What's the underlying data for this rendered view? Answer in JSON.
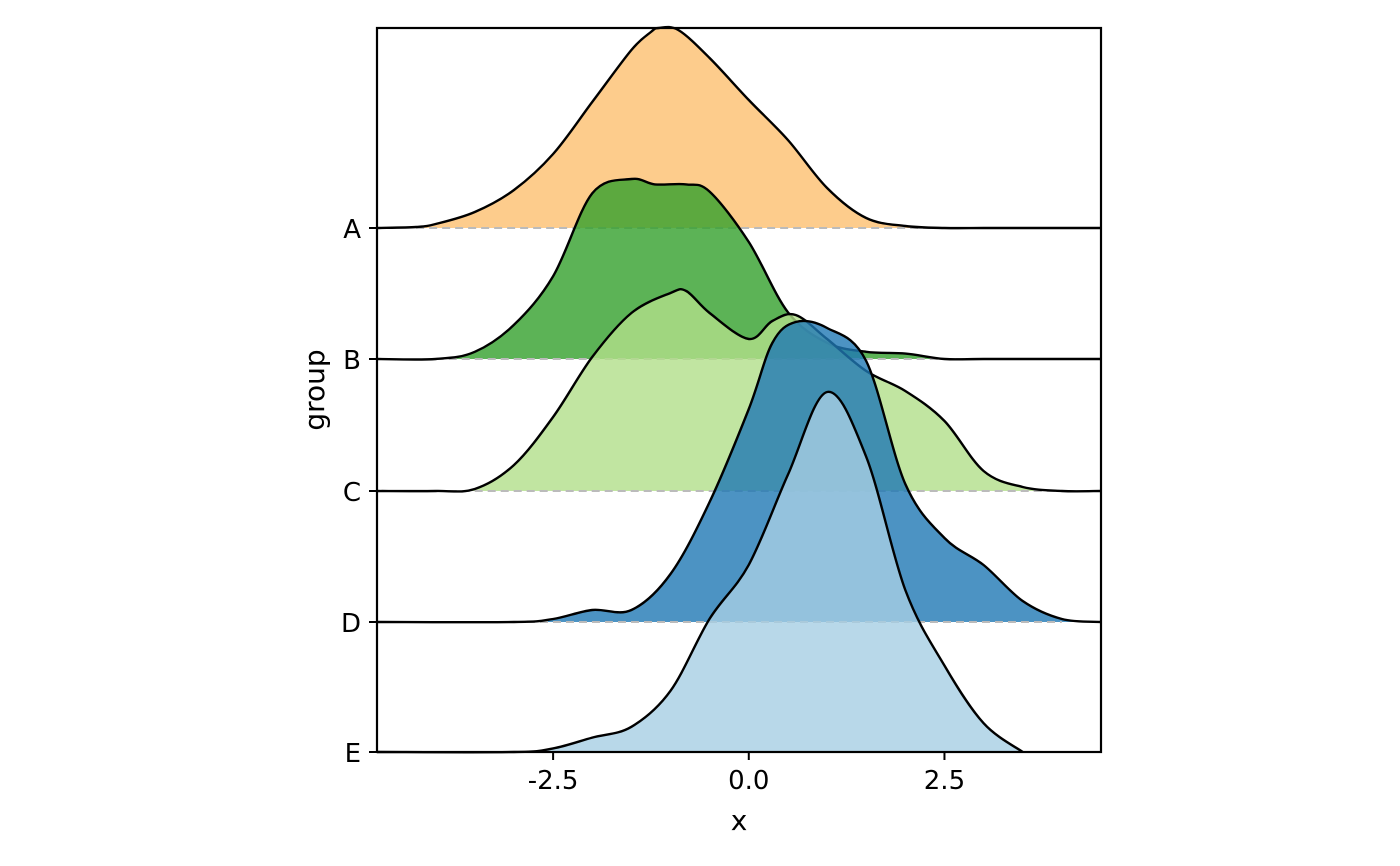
{
  "chart_data": {
    "type": "ridgeline",
    "title": "",
    "xlabel": "x",
    "ylabel": "group",
    "xlim": [
      -4.75,
      4.5
    ],
    "x_ticks": [
      -2.5,
      0.0,
      2.5
    ],
    "x_tick_labels": [
      "-2.5",
      "0.0",
      "2.5"
    ],
    "grid": false,
    "legend": "none",
    "series": [
      {
        "name": "A",
        "color": "#fdbf6f",
        "opacity": 0.8,
        "x": [
          -4.75,
          -4.25,
          -4.0,
          -3.5,
          -3.0,
          -2.5,
          -2.0,
          -1.5,
          -1.25,
          -1.15,
          -0.9,
          -0.5,
          0.0,
          0.5,
          1.0,
          1.5,
          2.0,
          2.5,
          3.0,
          3.5,
          4.0,
          4.5
        ],
        "density": [
          0.0,
          0.005,
          0.02,
          0.08,
          0.19,
          0.37,
          0.63,
          0.89,
          0.98,
          1.0,
          0.99,
          0.85,
          0.64,
          0.44,
          0.2,
          0.05,
          0.01,
          0.0,
          0.0,
          0.0,
          0.0,
          0.0
        ]
      },
      {
        "name": "B",
        "color": "#33a02c",
        "opacity": 0.8,
        "x": [
          -4.75,
          -4.0,
          -3.5,
          -3.0,
          -2.5,
          -2.0,
          -1.5,
          -1.2,
          -0.8,
          -0.5,
          0.0,
          0.5,
          1.0,
          1.5,
          2.0,
          2.5,
          3.0,
          4.5
        ],
        "density": [
          0.0,
          0.0,
          0.04,
          0.19,
          0.46,
          0.92,
          1.0,
          0.97,
          0.97,
          0.93,
          0.65,
          0.26,
          0.09,
          0.04,
          0.03,
          0.0,
          0.0,
          0.0
        ],
        "peak_scale": 0.9
      },
      {
        "name": "C",
        "color": "#b2df8a",
        "opacity": 0.8,
        "x": [
          -4.75,
          -4.0,
          -3.5,
          -3.0,
          -2.5,
          -2.0,
          -1.5,
          -1.0,
          -0.8,
          -0.5,
          0.0,
          0.3,
          0.6,
          1.0,
          1.5,
          2.0,
          2.5,
          3.0,
          3.5,
          4.0,
          4.5
        ],
        "density": [
          0.0,
          0.0,
          0.01,
          0.13,
          0.37,
          0.67,
          0.89,
          0.99,
          1.0,
          0.89,
          0.76,
          0.85,
          0.88,
          0.76,
          0.6,
          0.5,
          0.35,
          0.1,
          0.02,
          0.0,
          0.0
        ]
      },
      {
        "name": "D",
        "color": "#1f78b4",
        "opacity": 0.8,
        "x": [
          -4.75,
          -3.0,
          -2.5,
          -2.0,
          -1.5,
          -1.0,
          -0.5,
          0.0,
          0.3,
          0.6,
          1.0,
          1.5,
          2.0,
          2.5,
          3.0,
          3.5,
          4.0,
          4.5
        ],
        "density": [
          0.0,
          0.0,
          0.01,
          0.04,
          0.04,
          0.16,
          0.4,
          0.71,
          0.93,
          1.0,
          0.98,
          0.87,
          0.46,
          0.28,
          0.19,
          0.07,
          0.01,
          0.0
        ],
        "peak_scale": 1.5
      },
      {
        "name": "E",
        "color": "#a6cee3",
        "opacity": 0.8,
        "x": [
          -4.75,
          -3.0,
          -2.5,
          -2.0,
          -1.5,
          -1.0,
          -0.5,
          0.0,
          0.5,
          1.0,
          1.5,
          2.0,
          2.5,
          3.0,
          3.5
        ],
        "density": [
          0.0,
          0.0,
          0.01,
          0.04,
          0.07,
          0.17,
          0.37,
          0.52,
          0.77,
          1.0,
          0.82,
          0.45,
          0.24,
          0.08,
          0.0
        ],
        "peak_scale": 1.8
      }
    ]
  }
}
